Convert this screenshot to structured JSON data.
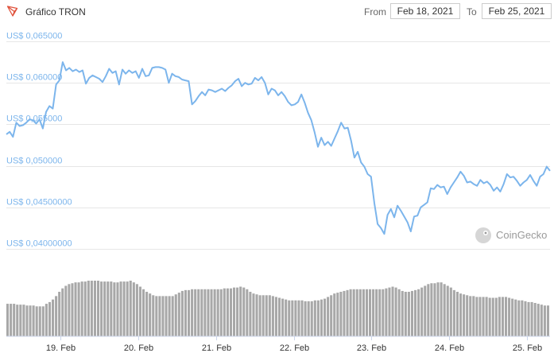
{
  "header": {
    "title": "Gráfico TRON",
    "logo_icon": "tron-logo-icon",
    "from_label": "From",
    "from_value": "Feb 18, 2021",
    "to_label": "To",
    "to_value": "Feb 25, 2021"
  },
  "watermark": {
    "text": "CoinGecko",
    "icon": "coingecko-logo-icon"
  },
  "colors": {
    "line": "#7cb5ec",
    "volume": "#a8a8a8",
    "grid": "#e6e6e6"
  },
  "chart_data": {
    "type": "line",
    "y_labels": [
      "US$ 0,065000",
      "US$ 0,060000",
      "US$ 0,055000",
      "US$ 0,050000",
      "US$ 0,04500000",
      "US$ 0,04000000"
    ],
    "y_ticks": [
      0.065,
      0.06,
      0.055,
      0.05,
      0.045,
      0.04
    ],
    "ylim": [
      0.04,
      0.065
    ],
    "x_labels": [
      "19. Feb",
      "20. Feb",
      "21. Feb",
      "22. Feb",
      "23. Feb",
      "24. Feb",
      "25. Feb"
    ],
    "x_ticks": [
      0.7,
      1.7,
      2.7,
      3.7,
      4.7,
      5.7,
      6.7
    ],
    "xlim": [
      0,
      7
    ],
    "grid": true,
    "series": [
      {
        "price": [
          0.0538,
          0.0541,
          0.0535,
          0.0552,
          0.0548,
          0.0549,
          0.0552,
          0.0556,
          0.0555,
          0.0551,
          0.0556,
          0.0545,
          0.0565,
          0.0572,
          0.0569,
          0.0598,
          0.0603,
          0.0625,
          0.0615,
          0.0618,
          0.0614,
          0.0616,
          0.0613,
          0.0615,
          0.0599,
          0.0606,
          0.0609,
          0.0607,
          0.0605,
          0.0601,
          0.0608,
          0.0617,
          0.0612,
          0.0614,
          0.0598,
          0.0616,
          0.0611,
          0.0615,
          0.0612,
          0.0614,
          0.0606,
          0.0617,
          0.0608,
          0.0609,
          0.0618,
          0.0619,
          0.0619,
          0.0618,
          0.0616,
          0.06,
          0.0611,
          0.0608,
          0.0607,
          0.0604,
          0.0603,
          0.0602,
          0.0574,
          0.0578,
          0.0584,
          0.0589,
          0.0585,
          0.0592,
          0.0591,
          0.0589,
          0.0591,
          0.0593,
          0.059,
          0.0594,
          0.0597,
          0.0602,
          0.0605,
          0.0596,
          0.06,
          0.0598,
          0.0599,
          0.0606,
          0.0603,
          0.0607,
          0.06,
          0.0586,
          0.0593,
          0.0591,
          0.0585,
          0.0589,
          0.0584,
          0.0577,
          0.0573,
          0.0574,
          0.0577,
          0.0586,
          0.0576,
          0.0564,
          0.0555,
          0.054,
          0.0523,
          0.0534,
          0.0525,
          0.0529,
          0.0524,
          0.0533,
          0.0542,
          0.0552,
          0.0545,
          0.0546,
          0.053,
          0.051,
          0.0517,
          0.0504,
          0.0499,
          0.049,
          0.0487,
          0.0455,
          0.043,
          0.0425,
          0.0418,
          0.0441,
          0.0448,
          0.0438,
          0.0452,
          0.0446,
          0.0439,
          0.0432,
          0.0421,
          0.0439,
          0.044,
          0.045,
          0.0453,
          0.0456,
          0.0473,
          0.0472,
          0.0477,
          0.0474,
          0.0475,
          0.0466,
          0.0474,
          0.048,
          0.0486,
          0.0493,
          0.0488,
          0.048,
          0.0481,
          0.0478,
          0.0476,
          0.0483,
          0.0479,
          0.0481,
          0.0477,
          0.047,
          0.0474,
          0.0469,
          0.0478,
          0.049,
          0.0486,
          0.0487,
          0.0482,
          0.0476,
          0.048,
          0.0483,
          0.0489,
          0.0482,
          0.0476,
          0.0487,
          0.049,
          0.0499,
          0.0494
        ]
      },
      {
        "volume": [
          0.38,
          0.38,
          0.38,
          0.37,
          0.37,
          0.37,
          0.36,
          0.36,
          0.36,
          0.35,
          0.35,
          0.35,
          0.38,
          0.4,
          0.43,
          0.47,
          0.52,
          0.56,
          0.59,
          0.61,
          0.62,
          0.63,
          0.63,
          0.64,
          0.64,
          0.65,
          0.65,
          0.65,
          0.65,
          0.64,
          0.64,
          0.64,
          0.64,
          0.63,
          0.63,
          0.64,
          0.64,
          0.64,
          0.65,
          0.63,
          0.61,
          0.58,
          0.55,
          0.52,
          0.5,
          0.48,
          0.47,
          0.47,
          0.47,
          0.47,
          0.47,
          0.47,
          0.49,
          0.51,
          0.53,
          0.54,
          0.54,
          0.55,
          0.55,
          0.55,
          0.55,
          0.55,
          0.55,
          0.55,
          0.55,
          0.55,
          0.55,
          0.56,
          0.56,
          0.56,
          0.57,
          0.57,
          0.58,
          0.57,
          0.55,
          0.52,
          0.5,
          0.49,
          0.48,
          0.48,
          0.48,
          0.48,
          0.47,
          0.46,
          0.45,
          0.44,
          0.43,
          0.42,
          0.42,
          0.42,
          0.42,
          0.42,
          0.41,
          0.41,
          0.41,
          0.42,
          0.42,
          0.43,
          0.44,
          0.46,
          0.48,
          0.5,
          0.51,
          0.52,
          0.53,
          0.54,
          0.55,
          0.55,
          0.55,
          0.55,
          0.55,
          0.55,
          0.55,
          0.55,
          0.55,
          0.55,
          0.55,
          0.56,
          0.57,
          0.58,
          0.57,
          0.55,
          0.53,
          0.52,
          0.52,
          0.53,
          0.54,
          0.55,
          0.57,
          0.59,
          0.61,
          0.62,
          0.62,
          0.63,
          0.63,
          0.61,
          0.59,
          0.57,
          0.54,
          0.52,
          0.5,
          0.49,
          0.48,
          0.47,
          0.47,
          0.46,
          0.46,
          0.46,
          0.46,
          0.45,
          0.45,
          0.45,
          0.46,
          0.46,
          0.46,
          0.45,
          0.44,
          0.43,
          0.42,
          0.42,
          0.41,
          0.4,
          0.4,
          0.39,
          0.38,
          0.37,
          0.36,
          0.36
        ]
      }
    ]
  }
}
